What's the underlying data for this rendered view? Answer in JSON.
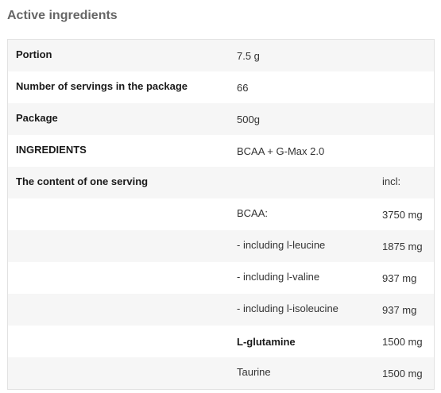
{
  "heading": "Active ingredients",
  "rows": [
    {
      "c1": "Portion",
      "c2": "7.5 g",
      "c3": ""
    },
    {
      "c1": "Number of servings in the package",
      "c2": "66",
      "c3": ""
    },
    {
      "c1": "Package",
      "c2": "500g",
      "c3": ""
    },
    {
      "c1": "INGREDIENTS",
      "c2": "BCAA + G-Max 2.0",
      "c3": ""
    },
    {
      "c1": "The content of one serving",
      "c2": "",
      "c3": "incl:"
    },
    {
      "c1": "",
      "c2": "BCAA:",
      "c3": "3750 mg"
    },
    {
      "c1": "",
      "c2": "- including l-leucine",
      "c3": "1875 mg"
    },
    {
      "c1": "",
      "c2": "- including l-valine",
      "c3": "937 mg"
    },
    {
      "c1": "",
      "c2": "- including l-isoleucine",
      "c3": "937 mg"
    },
    {
      "c1": "",
      "c2": "L-glutamine",
      "c3": "1500 mg"
    },
    {
      "c1": "",
      "c2": "Taurine",
      "c3": "1500 mg"
    }
  ]
}
